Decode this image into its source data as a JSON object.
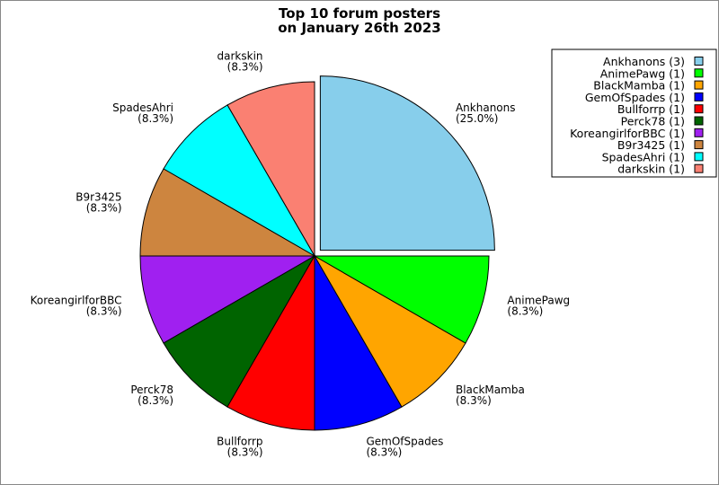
{
  "chart_data": {
    "type": "pie",
    "title_lines": [
      "Top 10 forum posters",
      "on January 26th 2023"
    ],
    "slices": [
      {
        "label": "Ankhanons",
        "count": 3,
        "percent": "25.0%",
        "color": "#87ceeb",
        "exploded": true
      },
      {
        "label": "darkskin",
        "count": 1,
        "percent": "8.3%",
        "color": "#fa8072",
        "exploded": false
      },
      {
        "label": "SpadesAhri",
        "count": 1,
        "percent": "8.3%",
        "color": "#00ffff",
        "exploded": false
      },
      {
        "label": "B9r3425",
        "count": 1,
        "percent": "8.3%",
        "color": "#cd853f",
        "exploded": false
      },
      {
        "label": "KoreangirlforBBC",
        "count": 1,
        "percent": "8.3%",
        "color": "#a020f0",
        "exploded": false
      },
      {
        "label": "Perck78",
        "count": 1,
        "percent": "8.3%",
        "color": "#006400",
        "exploded": false
      },
      {
        "label": "Bullforrp",
        "count": 1,
        "percent": "8.3%",
        "color": "#ff0000",
        "exploded": false
      },
      {
        "label": "GemOfSpades",
        "count": 1,
        "percent": "8.3%",
        "color": "#0000ff",
        "exploded": false
      },
      {
        "label": "BlackMamba",
        "count": 1,
        "percent": "8.3%",
        "color": "#ffa500",
        "exploded": false
      },
      {
        "label": "AnimePawg",
        "count": 1,
        "percent": "8.3%",
        "color": "#00ff00",
        "exploded": false
      }
    ],
    "legend": {
      "placement": "top-right",
      "entries": [
        {
          "text": "Ankhanons (3)",
          "color": "#87ceeb"
        },
        {
          "text": "AnimePawg (1)",
          "color": "#00ff00"
        },
        {
          "text": "BlackMamba (1)",
          "color": "#ffa500"
        },
        {
          "text": "GemOfSpades (1)",
          "color": "#0000ff"
        },
        {
          "text": "Bullforrp (1)",
          "color": "#ff0000"
        },
        {
          "text": "Perck78 (1)",
          "color": "#006400"
        },
        {
          "text": "KoreangirlforBBC (1)",
          "color": "#a020f0"
        },
        {
          "text": "B9r3425 (1)",
          "color": "#cd853f"
        },
        {
          "text": "SpadesAhri (1)",
          "color": "#00ffff"
        },
        {
          "text": "darkskin (1)",
          "color": "#fa8072"
        }
      ]
    }
  }
}
